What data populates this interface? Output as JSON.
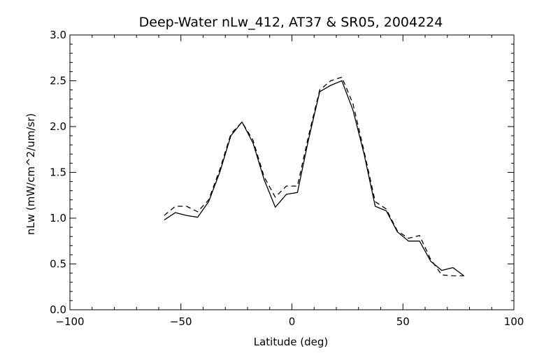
{
  "chart_data": {
    "type": "line",
    "title": "Deep-Water nLw_412, AT37 & SR05, 2004224",
    "xlabel": "Latitude (deg)",
    "ylabel": "nLw (mW/cm^2/um/sr)",
    "xlim": [
      -100,
      100
    ],
    "ylim": [
      0.0,
      3.0
    ],
    "x_ticks": [
      -100,
      -50,
      0,
      50,
      100
    ],
    "x_tick_labels": [
      "−100",
      "−50",
      "0",
      "50",
      "100"
    ],
    "y_ticks": [
      0.0,
      0.5,
      1.0,
      1.5,
      2.0,
      2.5,
      3.0
    ],
    "y_tick_labels": [
      "0.0",
      "0.5",
      "1.0",
      "1.5",
      "2.0",
      "2.5",
      "3.0"
    ],
    "grid": false,
    "legend": "none",
    "series": [
      {
        "style": "solid",
        "color": "#000000",
        "x": [
          -57.5,
          -52.5,
          -47.5,
          -42.5,
          -37.5,
          -32.5,
          -27.5,
          -22.5,
          -17.5,
          -12.5,
          -7.5,
          -2.5,
          2.5,
          7.5,
          12.5,
          17.5,
          22.5,
          27.5,
          32.5,
          37.5,
          42.5,
          47.5,
          52.5,
          57.5,
          62.5,
          67.5,
          72.5,
          77.5
        ],
        "values": [
          0.98,
          1.06,
          1.03,
          1.01,
          1.18,
          1.5,
          1.9,
          2.05,
          1.82,
          1.42,
          1.12,
          1.26,
          1.28,
          1.86,
          2.38,
          2.45,
          2.5,
          2.18,
          1.7,
          1.13,
          1.08,
          0.85,
          0.75,
          0.75,
          0.53,
          0.43,
          0.46,
          0.37
        ]
      },
      {
        "style": "dashed",
        "color": "#000000",
        "x": [
          -57.5,
          -52.5,
          -47.5,
          -42.5,
          -37.5,
          -32.5,
          -27.5,
          -22.5,
          -17.5,
          -12.5,
          -7.5,
          -2.5,
          2.5,
          7.5,
          12.5,
          17.5,
          22.5,
          27.5,
          32.5,
          37.5,
          42.5,
          47.5,
          52.5,
          57.5,
          62.5,
          67.5,
          72.5,
          77.5
        ],
        "values": [
          1.03,
          1.13,
          1.13,
          1.07,
          1.2,
          1.53,
          1.92,
          2.05,
          1.85,
          1.45,
          1.23,
          1.35,
          1.35,
          1.9,
          2.4,
          2.5,
          2.54,
          2.25,
          1.73,
          1.18,
          1.1,
          0.86,
          0.78,
          0.81,
          0.55,
          0.38,
          0.37,
          0.37
        ]
      }
    ]
  }
}
